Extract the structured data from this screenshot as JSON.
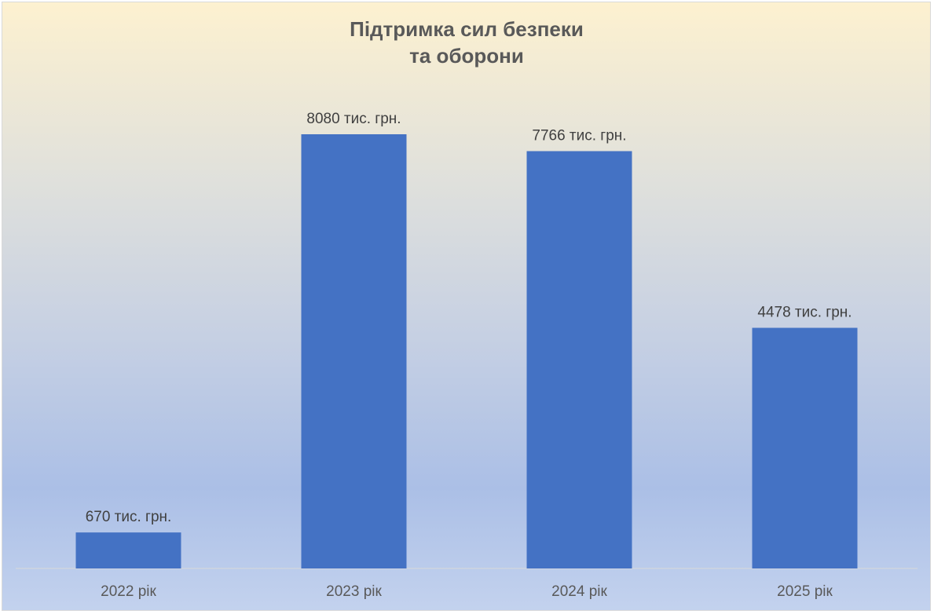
{
  "chart_data": {
    "type": "bar",
    "title": [
      "Підтримка сил безпеки",
      "та оборони"
    ],
    "categories": [
      "2022 рік",
      "2023 рік",
      "2024 рік",
      "2025 рік"
    ],
    "values": [
      670,
      8080,
      7766,
      4478
    ],
    "data_labels": [
      "670 тис. грн.",
      "8080 тис. грн.",
      "7766 тис. грн.",
      "4478 тис. грн."
    ],
    "ylim": [
      0,
      9500
    ],
    "grid": false,
    "legend": "none",
    "bar_color": "#4472c4"
  }
}
